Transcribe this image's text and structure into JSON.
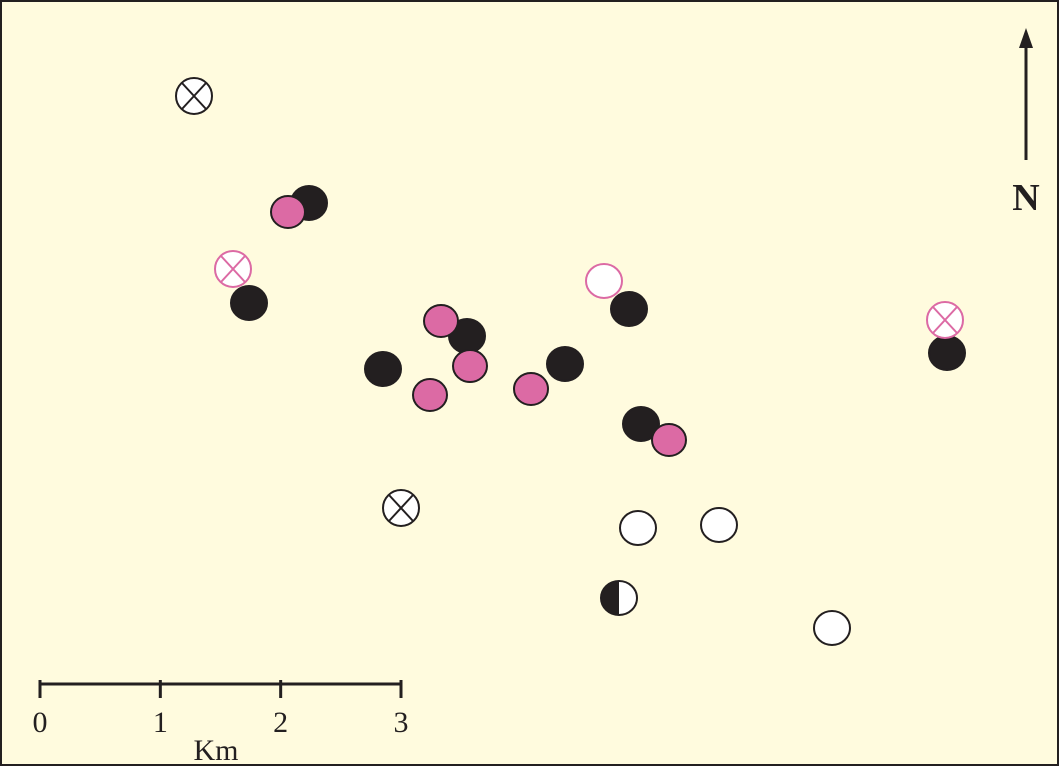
{
  "north_label": "N",
  "scale": {
    "ticks": [
      0,
      1,
      2,
      3
    ],
    "unit": "Km"
  }
}
